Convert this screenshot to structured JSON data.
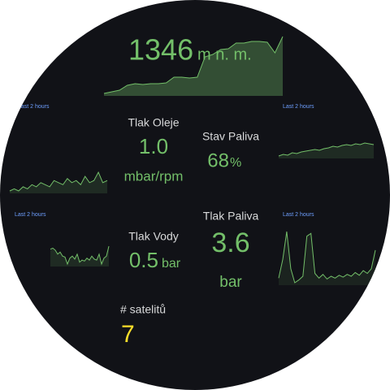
{
  "altitude": {
    "value": "1346",
    "unit": "m n. m.",
    "sparkline": [
      10,
      12,
      14,
      20,
      22,
      21,
      22,
      22,
      23,
      30,
      30,
      29,
      30,
      55,
      58,
      64,
      65,
      72,
      72,
      74,
      74,
      73,
      60,
      80
    ]
  },
  "panels": [
    {
      "time_range": "Last 2 hours",
      "sparkline": [
        5,
        6,
        5,
        7,
        6,
        8,
        7,
        9,
        8,
        7,
        10,
        9,
        8,
        11,
        9,
        10,
        8,
        12,
        9,
        10,
        14,
        9,
        10
      ]
    },
    {
      "time_range": "Last 2 hours",
      "sparkline": [
        20,
        22,
        21,
        24,
        23,
        25,
        26,
        27,
        28,
        27,
        29,
        30,
        32,
        31,
        33,
        34,
        33,
        35,
        34,
        36,
        35,
        34
      ]
    },
    {
      "time_range": "Last 2 hours",
      "sparkline": [
        45,
        46,
        44,
        40,
        42,
        38,
        37,
        30,
        36,
        38,
        35,
        40,
        32,
        34,
        33,
        36,
        34,
        38,
        35,
        34,
        40,
        30,
        36,
        38,
        48
      ]
    },
    {
      "time_range": "Last 2 hours",
      "sparkline": [
        10,
        30,
        60,
        20,
        5,
        8,
        12,
        55,
        58,
        15,
        10,
        14,
        9,
        12,
        10,
        13,
        11,
        14,
        12,
        16,
        13,
        18,
        15,
        20,
        40
      ]
    }
  ],
  "tlak_oleje": {
    "label": "Tlak Oleje",
    "value": "1.0",
    "unit": "mbar/rpm"
  },
  "stav_paliva": {
    "label": "Stav Paliva",
    "value": "68",
    "unit": "%"
  },
  "tlak_vody": {
    "label": "Tlak Vody",
    "value": "0.5",
    "unit": "bar"
  },
  "tlak_paliva": {
    "label": "Tlak Paliva",
    "value": "3.6",
    "unit": "bar"
  },
  "satelity": {
    "label": "# satelitů",
    "value": "7"
  }
}
